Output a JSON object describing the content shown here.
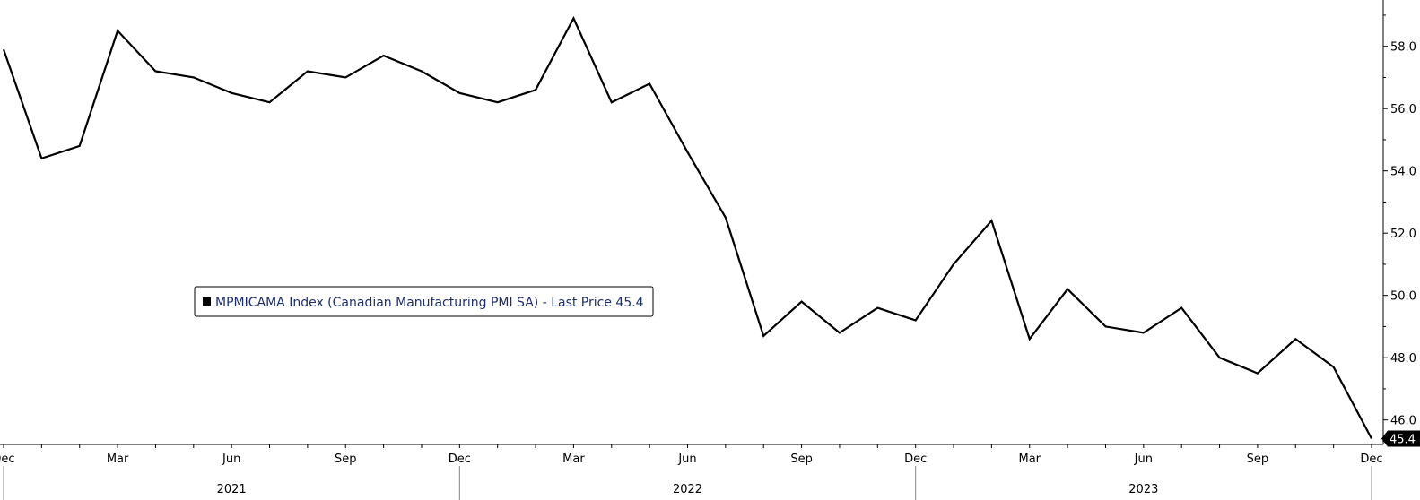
{
  "chart_data": {
    "type": "line",
    "legend": "MPMICAMA Index (Canadian Manufacturing PMI SA) - Last Price 45.4",
    "legend_placement": "center-left",
    "last_value_label": "45.4",
    "ylim": [
      45.3,
      59.2
    ],
    "yticks": [
      46,
      48,
      50,
      52,
      54,
      56,
      58
    ],
    "ytick_labels": [
      "46.0",
      "48.0",
      "50.0",
      "52.0",
      "54.0",
      "56.0",
      "58.0"
    ],
    "y_axis_side": "right",
    "grid": false,
    "x_tick_labels": [
      {
        "month": "2020-12",
        "label": "Dec"
      },
      {
        "month": "2021-03",
        "label": "Mar"
      },
      {
        "month": "2021-06",
        "label": "Jun"
      },
      {
        "month": "2021-09",
        "label": "Sep"
      },
      {
        "month": "2021-12",
        "label": "Dec"
      },
      {
        "month": "2022-03",
        "label": "Mar"
      },
      {
        "month": "2022-06",
        "label": "Jun"
      },
      {
        "month": "2022-09",
        "label": "Sep"
      },
      {
        "month": "2022-12",
        "label": "Dec"
      },
      {
        "month": "2023-03",
        "label": "Mar"
      },
      {
        "month": "2023-06",
        "label": "Jun"
      },
      {
        "month": "2023-09",
        "label": "Sep"
      },
      {
        "month": "2023-12",
        "label": "Dec"
      }
    ],
    "year_labels": [
      {
        "month": "2021-06",
        "label": "2021"
      },
      {
        "month": "2022-06",
        "label": "2022"
      },
      {
        "month": "2023-06",
        "label": "2023"
      }
    ],
    "series": [
      {
        "color": "#000000",
        "x": [
          "2020-12",
          "2021-01",
          "2021-02",
          "2021-03",
          "2021-04",
          "2021-05",
          "2021-06",
          "2021-07",
          "2021-08",
          "2021-09",
          "2021-10",
          "2021-11",
          "2021-12",
          "2022-01",
          "2022-02",
          "2022-03",
          "2022-04",
          "2022-05",
          "2022-06",
          "2022-07",
          "2022-08",
          "2022-09",
          "2022-10",
          "2022-11",
          "2022-12",
          "2023-01",
          "2023-02",
          "2023-03",
          "2023-04",
          "2023-05",
          "2023-06",
          "2023-07",
          "2023-08",
          "2023-09",
          "2023-10",
          "2023-11",
          "2023-12"
        ],
        "y": [
          57.9,
          54.4,
          54.8,
          58.5,
          57.2,
          57.0,
          56.5,
          56.2,
          57.2,
          57.0,
          57.7,
          57.2,
          56.5,
          56.2,
          56.6,
          58.9,
          56.2,
          56.8,
          54.6,
          52.5,
          48.7,
          49.8,
          48.8,
          49.6,
          49.2,
          51.0,
          52.4,
          48.6,
          50.2,
          49.0,
          48.8,
          49.6,
          48.0,
          47.5,
          48.6,
          47.7,
          45.4
        ]
      }
    ]
  }
}
